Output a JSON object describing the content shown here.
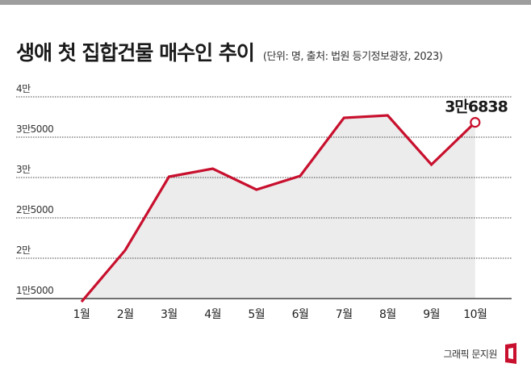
{
  "header": {
    "title": "생애 첫 집합건물 매수인 추이",
    "subtitle": "(단위: 명, 출처: 법원 등기정보광장, 2023)"
  },
  "footer": {
    "credit": "그래픽 문지원"
  },
  "colors": {
    "line": "#c8102e",
    "area": "#ececec",
    "grid": "#444444"
  },
  "chart_data": {
    "type": "area",
    "categories": [
      "1월",
      "2월",
      "3월",
      "4월",
      "5월",
      "6월",
      "7월",
      "8월",
      "9월",
      "10월"
    ],
    "values": [
      14600,
      21000,
      30100,
      31100,
      28500,
      30200,
      37400,
      37700,
      31600,
      36838
    ],
    "yticks": [
      {
        "value": 15000,
        "label": "1만5000"
      },
      {
        "value": 20000,
        "label": "2만"
      },
      {
        "value": 25000,
        "label": "2만5000"
      },
      {
        "value": 30000,
        "label": "3만"
      },
      {
        "value": 35000,
        "label": "3만5000"
      },
      {
        "value": 40000,
        "label": "4만"
      }
    ],
    "ylim": [
      15000,
      40000
    ],
    "annotation": {
      "index": 9,
      "label": "3만6838"
    },
    "grid": true
  }
}
